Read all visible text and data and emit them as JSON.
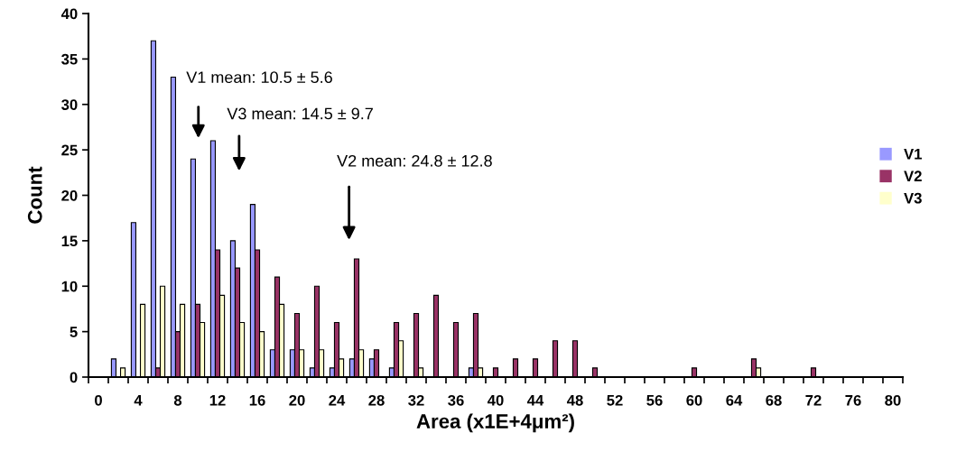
{
  "chart_data": {
    "type": "bar",
    "xlabel": "Area (x1E+4μm²)",
    "ylabel": "Count",
    "categories": [
      "0",
      null,
      "4",
      null,
      "8",
      null,
      "12",
      null,
      "16",
      null,
      "20",
      null,
      "24",
      null,
      "28",
      null,
      "32",
      null,
      "36",
      null,
      "40",
      null,
      "44",
      null,
      "48",
      null,
      "52",
      null,
      "56",
      null,
      "60",
      null,
      "64",
      null,
      "68",
      null,
      "72",
      null,
      "76",
      null,
      "80"
    ],
    "series": [
      {
        "name": "V1",
        "color": "#9999ff",
        "values": [
          0,
          2,
          17,
          37,
          33,
          24,
          26,
          15,
          19,
          3,
          3,
          1,
          1,
          2,
          2,
          1,
          0,
          0,
          0,
          1,
          0,
          0,
          0,
          0,
          0,
          0,
          0,
          0,
          0,
          0,
          0,
          0,
          0,
          0,
          0,
          0,
          0,
          0,
          0,
          0,
          0
        ]
      },
      {
        "name": "V2",
        "color": "#993366",
        "values": [
          0,
          0,
          0,
          1,
          5,
          8,
          14,
          12,
          14,
          11,
          7,
          10,
          6,
          13,
          3,
          6,
          7,
          9,
          6,
          7,
          1,
          2,
          2,
          4,
          4,
          1,
          0,
          0,
          0,
          0,
          1,
          0,
          0,
          2,
          0,
          0,
          1,
          0,
          0,
          0,
          0
        ]
      },
      {
        "name": "V3",
        "color": "#ffffcc",
        "values": [
          0,
          1,
          8,
          10,
          8,
          6,
          9,
          6,
          5,
          8,
          3,
          3,
          2,
          3,
          0,
          4,
          1,
          0,
          0,
          1,
          0,
          0,
          0,
          0,
          0,
          0,
          0,
          0,
          0,
          0,
          0,
          0,
          0,
          1,
          0,
          0,
          0,
          0,
          0,
          0,
          0
        ]
      }
    ],
    "ylim": [
      0,
      40
    ],
    "yticks": [
      0,
      5,
      10,
      15,
      20,
      25,
      30,
      35,
      40
    ],
    "grid": false,
    "legend": "right",
    "annotations": [
      "V1 mean: 10.5 ± 5.6",
      "V3 mean: 14.5 ± 9.7",
      "V2 mean: 24.8 ± 12.8"
    ]
  }
}
